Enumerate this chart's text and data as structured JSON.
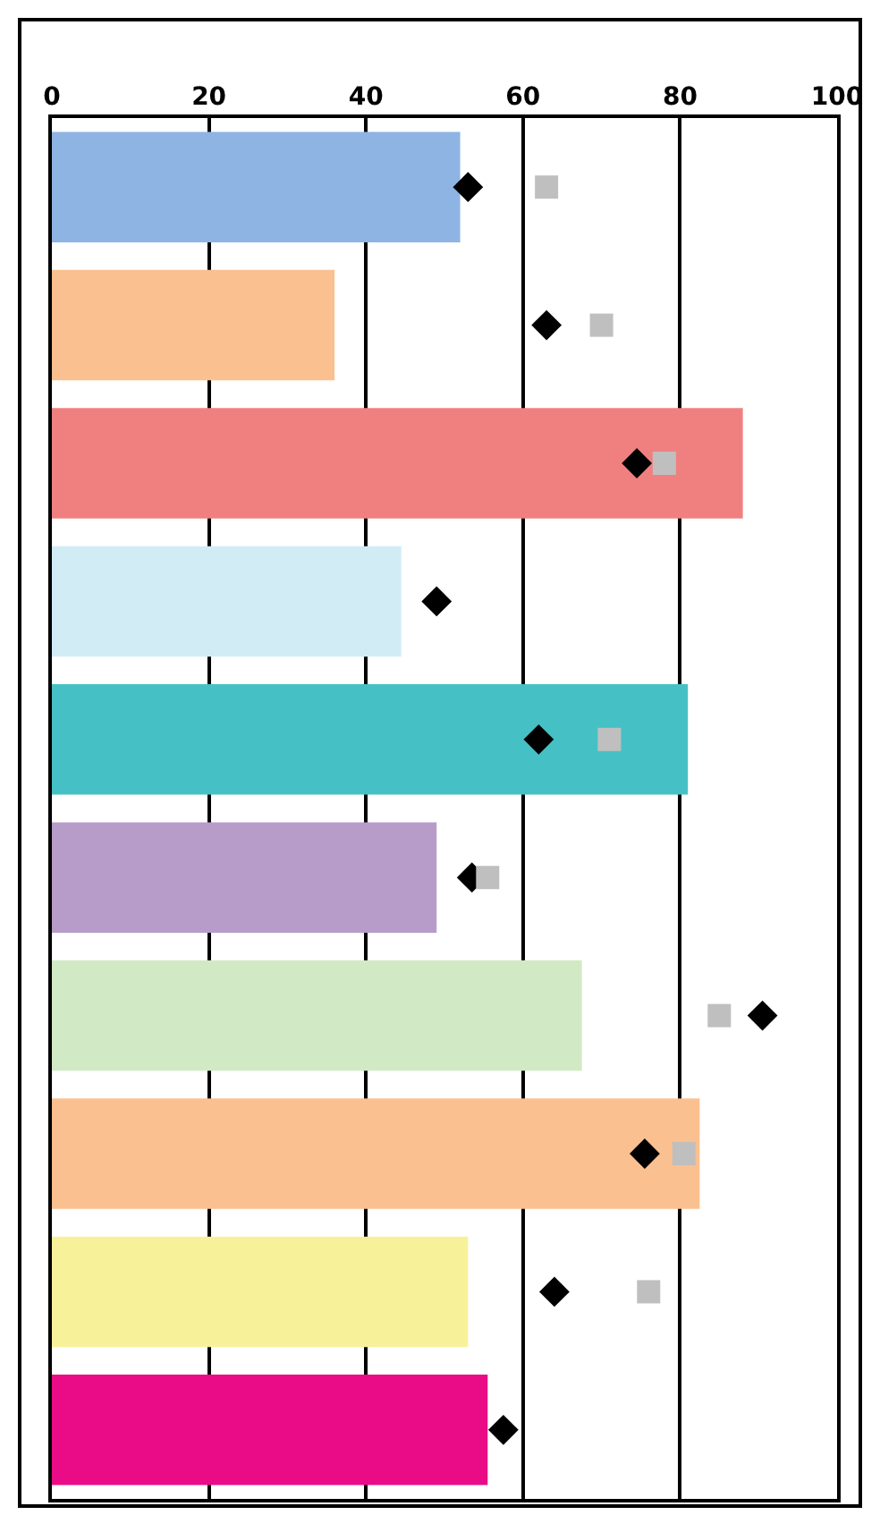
{
  "chart_data": {
    "type": "bar",
    "orientation": "horizontal",
    "categories": [
      null,
      null,
      null,
      null,
      null,
      null,
      null,
      null,
      null,
      null
    ],
    "xlim": [
      0,
      100
    ],
    "xticks": [
      0,
      20,
      40,
      60,
      80,
      100
    ],
    "grid": "x",
    "series": [
      {
        "type": "bar",
        "colors": [
          "#8eb4e3",
          "#fac090",
          "#f08080",
          "#d2ecf6",
          "#45c1c6",
          "#b79cc9",
          "#d2e9c6",
          "#fac090",
          "#f7f19a",
          "#ea0c86"
        ],
        "values": [
          52,
          36,
          88,
          44.5,
          81,
          49,
          67.5,
          82.5,
          53,
          55.5
        ]
      },
      {
        "type": "scatter",
        "marker": "diamond",
        "color": "#000000",
        "values": [
          53,
          63,
          74.5,
          49,
          62,
          53.5,
          90.5,
          75.5,
          64,
          57.5
        ]
      },
      {
        "type": "scatter",
        "marker": "square",
        "color": "#bfbfbf",
        "values": [
          63,
          70,
          78,
          null,
          71,
          55.5,
          85,
          80.5,
          76,
          null
        ]
      }
    ]
  }
}
